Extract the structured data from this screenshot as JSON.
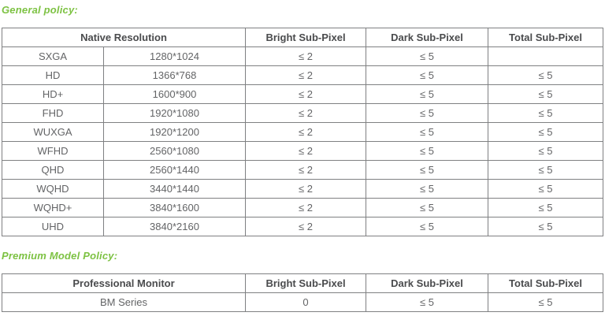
{
  "general": {
    "heading": "General policy:",
    "columns": {
      "native_resolution": "Native Resolution",
      "bright": "Bright Sub-Pixel",
      "dark": "Dark Sub-Pixel",
      "total": "Total Sub-Pixel"
    },
    "rows": [
      {
        "name": "SXGA",
        "resolution": "1280*1024",
        "bright": "≤ 2",
        "dark": "≤ 5",
        "total": ""
      },
      {
        "name": "HD",
        "resolution": "1366*768",
        "bright": "≤ 2",
        "dark": "≤ 5",
        "total": "≤ 5"
      },
      {
        "name": "HD+",
        "resolution": "1600*900",
        "bright": "≤ 2",
        "dark": "≤ 5",
        "total": "≤ 5"
      },
      {
        "name": "FHD",
        "resolution": "1920*1080",
        "bright": "≤ 2",
        "dark": "≤ 5",
        "total": "≤ 5"
      },
      {
        "name": "WUXGA",
        "resolution": "1920*1200",
        "bright": "≤ 2",
        "dark": "≤ 5",
        "total": "≤ 5"
      },
      {
        "name": "WFHD",
        "resolution": "2560*1080",
        "bright": "≤ 2",
        "dark": "≤ 5",
        "total": "≤ 5"
      },
      {
        "name": "QHD",
        "resolution": "2560*1440",
        "bright": "≤ 2",
        "dark": "≤ 5",
        "total": "≤ 5"
      },
      {
        "name": "WQHD",
        "resolution": "3440*1440",
        "bright": "≤ 2",
        "dark": "≤ 5",
        "total": "≤ 5"
      },
      {
        "name": "WQHD+",
        "resolution": "3840*1600",
        "bright": "≤ 2",
        "dark": "≤ 5",
        "total": "≤ 5"
      },
      {
        "name": "UHD",
        "resolution": "3840*2160",
        "bright": "≤ 2",
        "dark": "≤ 5",
        "total": "≤ 5"
      }
    ]
  },
  "premium": {
    "heading": "Premium Model Policy:",
    "columns": {
      "professional_monitor": "Professional Monitor",
      "bright": "Bright Sub-Pixel",
      "dark": "Dark Sub-Pixel",
      "total": "Total Sub-Pixel"
    },
    "rows": [
      {
        "name": "BM Series",
        "bright": "0",
        "dark": "≤ 5",
        "total": "≤ 5"
      }
    ]
  },
  "colors": {
    "heading_green": "#7dc243",
    "header_text": "#4a4b4d",
    "cell_text": "#636466",
    "border": "#7f8082"
  }
}
